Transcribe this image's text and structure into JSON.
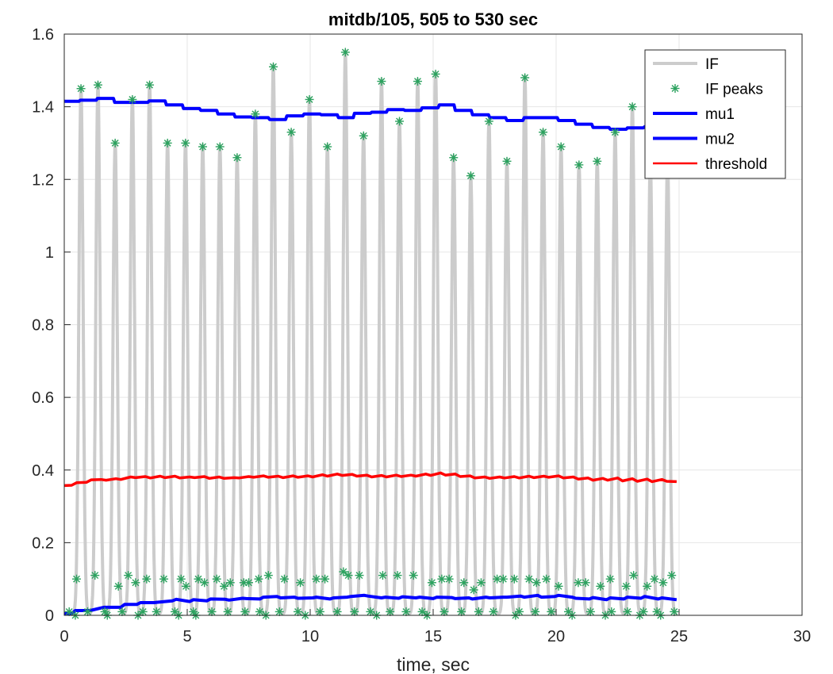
{
  "chart_data": {
    "type": "line",
    "title": "mitdb/105, 505 to 530 sec",
    "xlabel": "time, sec",
    "ylabel": "",
    "xlim": [
      0,
      30
    ],
    "ylim": [
      0,
      1.6
    ],
    "xticks": [
      0,
      5,
      10,
      15,
      20,
      25,
      30
    ],
    "yticks": [
      0,
      0.2,
      0.4,
      0.6,
      0.8,
      1,
      1.2,
      1.4,
      1.6
    ],
    "xtick_labels": [
      "0",
      "5",
      "10",
      "15",
      "20",
      "25",
      "30"
    ],
    "ytick_labels": [
      "0",
      "0.2",
      "0.4",
      "0.6",
      "0.8",
      "1",
      "1.2",
      "1.4",
      "1.6"
    ],
    "grid": true,
    "legend_position": "top-right",
    "colors": {
      "IF": "#cccccc",
      "IF peaks": "#2ca25f",
      "mu1": "#0000ff",
      "mu2": "#0000ff",
      "threshold": "#ff0000"
    },
    "series": [
      {
        "name": "IF",
        "style": "line",
        "description_peaks_x": [
          0.68,
          1.37,
          2.07,
          2.77,
          3.47,
          4.2,
          4.93,
          5.63,
          6.33,
          7.03,
          7.77,
          8.5,
          9.23,
          9.97,
          10.7,
          11.43,
          12.17,
          12.9,
          13.63,
          14.37,
          15.1,
          15.83,
          16.53,
          17.27,
          18.0,
          18.73,
          19.47,
          20.2,
          20.93,
          21.67,
          22.4,
          23.1,
          23.83,
          24.53
        ],
        "description_peaks_y": [
          1.45,
          1.46,
          1.3,
          1.42,
          1.46,
          1.3,
          1.3,
          1.29,
          1.29,
          1.26,
          1.38,
          1.51,
          1.33,
          1.42,
          1.29,
          1.55,
          1.32,
          1.47,
          1.36,
          1.47,
          1.49,
          1.26,
          1.21,
          1.36,
          1.25,
          1.48,
          1.33,
          1.29,
          1.24,
          1.25,
          1.33,
          1.4,
          1.25,
          1.25
        ],
        "x_end": 24.9
      },
      {
        "name": "IF peaks",
        "style": "marker",
        "high": {
          "x": [
            0.68,
            1.37,
            2.07,
            2.77,
            3.47,
            4.2,
            4.93,
            5.63,
            6.33,
            7.03,
            7.77,
            8.5,
            9.23,
            9.97,
            10.7,
            11.43,
            12.17,
            12.9,
            13.63,
            14.37,
            15.1,
            15.83,
            16.53,
            17.27,
            18.0,
            18.73,
            19.47,
            20.2,
            20.93,
            21.67,
            22.4,
            23.1,
            23.83,
            24.53
          ],
          "y": [
            1.45,
            1.46,
            1.3,
            1.42,
            1.46,
            1.3,
            1.3,
            1.29,
            1.29,
            1.26,
            1.38,
            1.51,
            1.33,
            1.42,
            1.29,
            1.55,
            1.32,
            1.47,
            1.36,
            1.47,
            1.49,
            1.26,
            1.21,
            1.36,
            1.25,
            1.48,
            1.33,
            1.29,
            1.24,
            1.25,
            1.33,
            1.4,
            1.25,
            1.25
          ]
        },
        "mid": {
          "x": [
            0.5,
            1.25,
            2.2,
            2.6,
            2.9,
            3.35,
            4.05,
            4.75,
            4.95,
            5.45,
            5.7,
            6.2,
            6.5,
            6.75,
            7.3,
            7.5,
            7.9,
            8.3,
            8.95,
            9.6,
            10.25,
            10.6,
            11.35,
            11.55,
            12.0,
            12.95,
            13.55,
            14.2,
            14.95,
            15.35,
            15.65,
            16.25,
            16.65,
            16.95,
            17.6,
            17.85,
            18.3,
            18.9,
            19.2,
            19.6,
            20.1,
            20.9,
            21.2,
            21.8,
            22.2,
            22.85,
            23.15,
            23.7,
            24.0,
            24.35,
            24.7
          ],
          "y": [
            0.1,
            0.11,
            0.08,
            0.11,
            0.09,
            0.1,
            0.1,
            0.1,
            0.08,
            0.1,
            0.09,
            0.1,
            0.08,
            0.09,
            0.09,
            0.09,
            0.1,
            0.11,
            0.1,
            0.09,
            0.1,
            0.1,
            0.12,
            0.11,
            0.11,
            0.11,
            0.11,
            0.11,
            0.09,
            0.1,
            0.1,
            0.09,
            0.07,
            0.09,
            0.1,
            0.1,
            0.1,
            0.1,
            0.09,
            0.1,
            0.08,
            0.09,
            0.09,
            0.08,
            0.1,
            0.08,
            0.11,
            0.08,
            0.1,
            0.09,
            0.11
          ]
        },
        "low": {
          "x": [
            0.2,
            0.45,
            0.95,
            1.65,
            1.75,
            2.35,
            3.0,
            3.2,
            3.75,
            4.5,
            4.65,
            5.25,
            5.35,
            6.0,
            6.65,
            7.35,
            7.95,
            8.2,
            8.75,
            9.5,
            9.8,
            10.4,
            11.1,
            11.8,
            12.45,
            12.7,
            13.25,
            13.9,
            14.55,
            14.75,
            15.45,
            16.15,
            16.85,
            17.45,
            18.35,
            18.5,
            19.15,
            19.8,
            20.5,
            20.65,
            21.4,
            22.0,
            22.25,
            22.9,
            23.4,
            23.55,
            24.1,
            24.25,
            24.8
          ],
          "y": [
            0.01,
            0.0,
            0.01,
            0.01,
            0.0,
            0.01,
            0.0,
            0.01,
            0.01,
            0.01,
            0.0,
            0.01,
            0.0,
            0.01,
            0.01,
            0.01,
            0.01,
            0.0,
            0.01,
            0.01,
            0.0,
            0.01,
            0.01,
            0.01,
            0.01,
            0.0,
            0.01,
            0.01,
            0.01,
            0.0,
            0.01,
            0.01,
            0.01,
            0.01,
            0.0,
            0.01,
            0.01,
            0.01,
            0.01,
            0.0,
            0.01,
            0.0,
            0.01,
            0.01,
            0.0,
            0.01,
            0.01,
            0.0,
            0.01
          ]
        }
      },
      {
        "name": "mu1",
        "style": "line",
        "x": [
          0,
          0.6,
          0.65,
          1.3,
          1.35,
          2.0,
          2.05,
          2.7,
          2.75,
          3.4,
          3.45,
          4.1,
          4.15,
          4.8,
          4.85,
          5.5,
          5.55,
          6.2,
          6.25,
          6.9,
          6.95,
          7.6,
          7.65,
          8.3,
          8.35,
          9.0,
          9.05,
          9.7,
          9.75,
          10.4,
          10.45,
          11.1,
          11.15,
          11.75,
          11.8,
          12.45,
          12.5,
          13.1,
          13.15,
          13.8,
          13.85,
          14.5,
          14.55,
          15.2,
          15.25,
          15.85,
          15.9,
          16.55,
          16.6,
          17.25,
          17.3,
          17.95,
          18.0,
          18.65,
          18.7,
          19.35,
          19.4,
          20.05,
          20.1,
          20.75,
          20.8,
          21.45,
          21.5,
          22.15,
          22.2,
          22.85,
          22.9,
          23.55,
          23.6,
          24.25,
          24.3,
          24.9
        ],
        "y": [
          1.415,
          1.415,
          1.418,
          1.418,
          1.423,
          1.423,
          1.412,
          1.412,
          1.412,
          1.412,
          1.416,
          1.416,
          1.405,
          1.405,
          1.395,
          1.395,
          1.39,
          1.39,
          1.38,
          1.38,
          1.372,
          1.372,
          1.37,
          1.37,
          1.365,
          1.365,
          1.375,
          1.375,
          1.38,
          1.38,
          1.378,
          1.378,
          1.37,
          1.37,
          1.382,
          1.382,
          1.385,
          1.385,
          1.392,
          1.392,
          1.39,
          1.39,
          1.397,
          1.397,
          1.405,
          1.405,
          1.39,
          1.39,
          1.378,
          1.378,
          1.37,
          1.37,
          1.362,
          1.362,
          1.37,
          1.37,
          1.37,
          1.37,
          1.362,
          1.362,
          1.352,
          1.352,
          1.343,
          1.343,
          1.338,
          1.338,
          1.342,
          1.342,
          1.345,
          1.345,
          1.345,
          1.345
        ]
      },
      {
        "name": "mu2",
        "style": "line",
        "x": [
          0,
          0.3,
          0.45,
          0.95,
          1.05,
          1.6,
          1.7,
          2.3,
          2.45,
          2.95,
          3.1,
          3.65,
          3.8,
          4.4,
          4.55,
          5.1,
          5.25,
          5.8,
          5.95,
          6.55,
          6.7,
          7.25,
          7.4,
          7.95,
          8.1,
          8.65,
          8.8,
          9.35,
          9.5,
          10.1,
          10.25,
          10.8,
          10.95,
          11.5,
          11.65,
          12.2,
          12.35,
          12.9,
          13.05,
          13.6,
          13.75,
          14.3,
          14.45,
          15.0,
          15.15,
          15.75,
          15.9,
          16.45,
          16.6,
          17.15,
          17.3,
          17.85,
          18.0,
          18.55,
          18.7,
          19.25,
          19.4,
          19.95,
          20.1,
          20.65,
          20.8,
          21.35,
          21.5,
          22.05,
          22.2,
          22.75,
          22.9,
          23.45,
          23.6,
          24.15,
          24.3,
          24.9
        ],
        "y": [
          0.005,
          0.005,
          0.013,
          0.013,
          0.013,
          0.022,
          0.022,
          0.022,
          0.03,
          0.03,
          0.035,
          0.035,
          0.036,
          0.04,
          0.044,
          0.038,
          0.043,
          0.04,
          0.045,
          0.044,
          0.042,
          0.047,
          0.046,
          0.045,
          0.05,
          0.052,
          0.048,
          0.05,
          0.047,
          0.048,
          0.05,
          0.045,
          0.048,
          0.05,
          0.052,
          0.055,
          0.053,
          0.048,
          0.05,
          0.047,
          0.051,
          0.048,
          0.05,
          0.046,
          0.05,
          0.049,
          0.046,
          0.048,
          0.045,
          0.05,
          0.048,
          0.05,
          0.05,
          0.053,
          0.05,
          0.055,
          0.05,
          0.052,
          0.055,
          0.05,
          0.047,
          0.045,
          0.049,
          0.043,
          0.048,
          0.045,
          0.05,
          0.047,
          0.052,
          0.045,
          0.048,
          0.043
        ]
      },
      {
        "name": "threshold",
        "style": "line",
        "x": [
          0,
          0.3,
          0.5,
          0.9,
          1.1,
          1.5,
          1.7,
          2.1,
          2.3,
          2.7,
          2.9,
          3.3,
          3.5,
          3.9,
          4.1,
          4.5,
          4.7,
          5.1,
          5.3,
          5.7,
          5.9,
          6.3,
          6.5,
          6.9,
          7.1,
          7.5,
          7.7,
          8.1,
          8.3,
          8.7,
          8.9,
          9.3,
          9.5,
          9.9,
          10.1,
          10.5,
          10.7,
          11.1,
          11.3,
          11.7,
          11.9,
          12.3,
          12.5,
          12.9,
          13.1,
          13.5,
          13.7,
          14.1,
          14.3,
          14.7,
          14.9,
          15.3,
          15.5,
          15.9,
          16.1,
          16.5,
          16.7,
          17.1,
          17.3,
          17.7,
          17.9,
          18.3,
          18.5,
          18.9,
          19.1,
          19.5,
          19.7,
          20.1,
          20.3,
          20.7,
          20.9,
          21.3,
          21.5,
          21.9,
          22.1,
          22.5,
          22.7,
          23.1,
          23.3,
          23.7,
          23.9,
          24.3,
          24.5,
          24.9
        ],
        "y": [
          0.357,
          0.358,
          0.365,
          0.366,
          0.373,
          0.374,
          0.372,
          0.376,
          0.374,
          0.381,
          0.379,
          0.382,
          0.378,
          0.383,
          0.379,
          0.383,
          0.378,
          0.381,
          0.379,
          0.382,
          0.377,
          0.381,
          0.377,
          0.379,
          0.378,
          0.382,
          0.38,
          0.384,
          0.38,
          0.383,
          0.379,
          0.384,
          0.38,
          0.384,
          0.381,
          0.387,
          0.383,
          0.389,
          0.385,
          0.388,
          0.383,
          0.386,
          0.381,
          0.385,
          0.381,
          0.386,
          0.382,
          0.386,
          0.383,
          0.389,
          0.385,
          0.392,
          0.386,
          0.389,
          0.382,
          0.384,
          0.378,
          0.381,
          0.377,
          0.381,
          0.378,
          0.382,
          0.378,
          0.383,
          0.379,
          0.383,
          0.38,
          0.384,
          0.378,
          0.381,
          0.375,
          0.378,
          0.372,
          0.377,
          0.372,
          0.378,
          0.37,
          0.376,
          0.369,
          0.375,
          0.368,
          0.374,
          0.369,
          0.368
        ]
      }
    ],
    "legend": [
      "IF",
      "IF peaks",
      "mu1",
      "mu2",
      "threshold"
    ]
  }
}
